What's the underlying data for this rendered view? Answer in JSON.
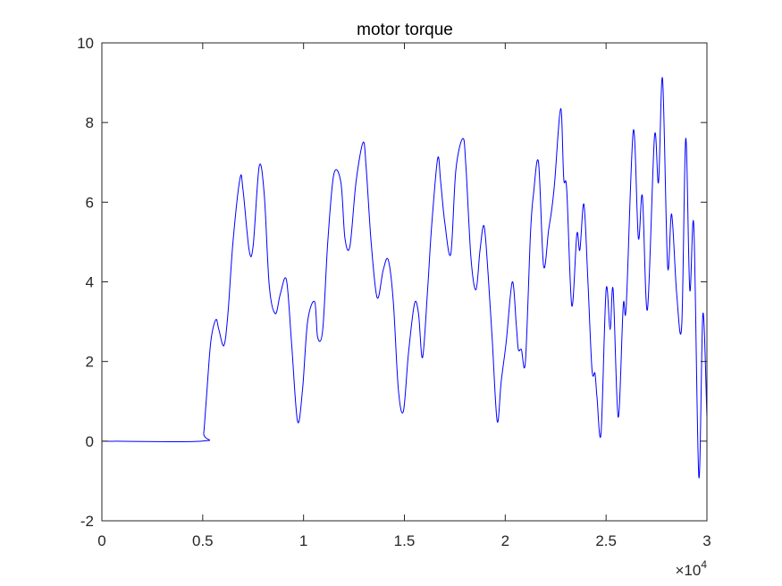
{
  "chart_data": {
    "type": "line",
    "title": "motor torque",
    "xlabel": "",
    "ylabel": "",
    "xlim": [
      0,
      30000
    ],
    "ylim": [
      -2,
      10
    ],
    "grid": false,
    "legend": "none",
    "x_ticks": [
      0,
      5000,
      10000,
      15000,
      20000,
      25000,
      30000
    ],
    "x_tick_labels": [
      "0",
      "0.5",
      "1",
      "1.5",
      "2",
      "2.5",
      "3"
    ],
    "x_exponent_base": "×10",
    "x_exponent_power": "4",
    "y_ticks": [
      -2,
      0,
      2,
      4,
      6,
      8,
      10
    ],
    "y_tick_labels": [
      "-2",
      "0",
      "2",
      "4",
      "6",
      "8",
      "10"
    ],
    "series": [
      {
        "color": "#0000ff",
        "x": [
          0,
          4950,
          5050,
          5200,
          5400,
          5650,
          5800,
          6050,
          6250,
          6500,
          6850,
          7000,
          7300,
          7500,
          7800,
          8050,
          8300,
          8600,
          8850,
          9150,
          9400,
          9700,
          9950,
          10200,
          10550,
          10700,
          10950,
          11200,
          11500,
          11850,
          12050,
          12300,
          12600,
          12950,
          13100,
          13350,
          13650,
          13950,
          14200,
          14450,
          14700,
          14950,
          15200,
          15500,
          15700,
          15900,
          16150,
          16350,
          16650,
          16800,
          17000,
          17300,
          17550,
          17900,
          18050,
          18300,
          18550,
          18750,
          18950,
          19150,
          19350,
          19600,
          19800,
          20050,
          20350,
          20550,
          20650,
          20800,
          21000,
          21250,
          21400,
          21650,
          21900,
          22150,
          22300,
          22450,
          22750,
          22900,
          23050,
          23300,
          23550,
          23700,
          23900,
          24100,
          24300,
          24450,
          24550,
          24750,
          25000,
          25200,
          25350,
          25600,
          25850,
          26000,
          26350,
          26600,
          26800,
          27050,
          27400,
          27600,
          27800,
          28050,
          28250,
          28500,
          28750,
          28950,
          29150,
          29350,
          29600,
          29800,
          30000
        ],
        "y": [
          0,
          0,
          0.2,
          1.2,
          2.5,
          3.05,
          2.8,
          2.4,
          3.2,
          5.0,
          6.6,
          6.3,
          4.8,
          4.9,
          6.9,
          6.2,
          3.9,
          3.2,
          3.7,
          4.05,
          2.5,
          0.5,
          1.3,
          3.0,
          3.5,
          2.6,
          2.8,
          5.0,
          6.7,
          6.5,
          5.1,
          4.9,
          6.5,
          7.5,
          6.9,
          5.0,
          3.6,
          4.3,
          4.55,
          3.5,
          1.3,
          0.75,
          2.2,
          3.45,
          3.2,
          2.1,
          3.8,
          5.4,
          7.1,
          6.5,
          5.5,
          4.7,
          6.8,
          7.6,
          6.9,
          4.6,
          3.8,
          4.8,
          5.4,
          4.2,
          2.6,
          0.5,
          1.5,
          2.5,
          4.0,
          2.9,
          2.3,
          2.3,
          2.0,
          5.2,
          6.2,
          7.0,
          4.4,
          5.3,
          5.8,
          6.5,
          8.35,
          6.6,
          6.3,
          3.4,
          5.2,
          4.8,
          5.95,
          4.0,
          1.8,
          1.7,
          1.1,
          0.2,
          3.8,
          2.8,
          3.8,
          0.6,
          3.4,
          3.4,
          7.8,
          5.1,
          6.15,
          3.3,
          7.65,
          6.5,
          9.1,
          4.4,
          5.7,
          3.7,
          2.9,
          7.6,
          3.8,
          5.4,
          -0.9,
          3.2,
          0.6
        ]
      }
    ]
  }
}
